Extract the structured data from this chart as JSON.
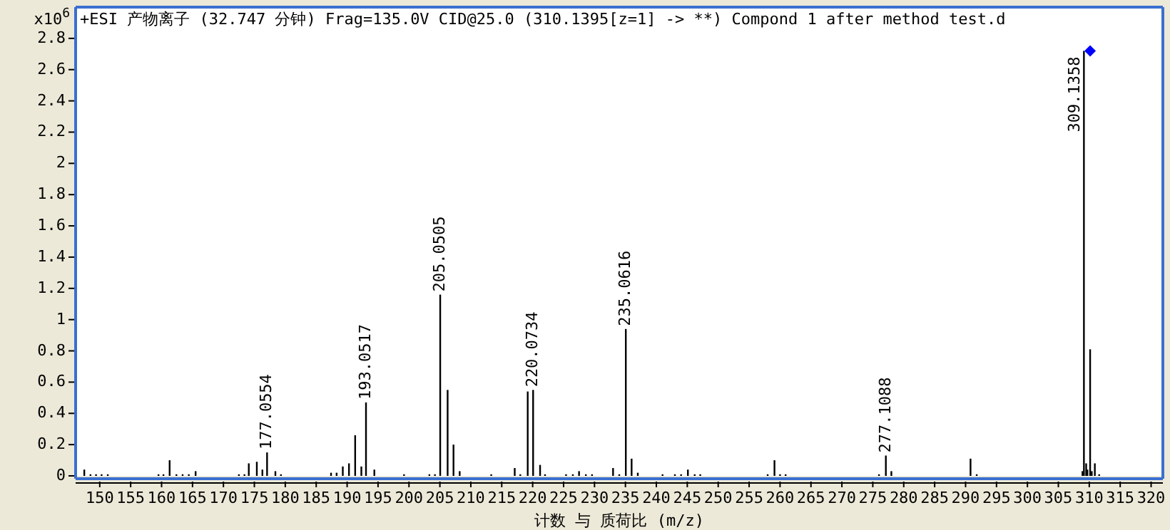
{
  "chart_data": {
    "type": "bar",
    "title": "+ESI 产物离子 (32.747 分钟) Frag=135.0V CID@25.0 (310.1395[z=1] -> **) Compond 1 after method test.d",
    "xlabel": "计数 与 质荷比 (m/z)",
    "ylabel": "x10$^{6}$",
    "xlim": [
      146.1,
      321.9
    ],
    "ylim": [
      0,
      3.0
    ],
    "xticks": [
      150,
      155,
      160,
      165,
      170,
      175,
      180,
      185,
      190,
      195,
      200,
      205,
      210,
      215,
      220,
      225,
      230,
      235,
      240,
      245,
      250,
      255,
      260,
      265,
      270,
      275,
      280,
      285,
      290,
      295,
      300,
      305,
      310,
      315,
      320
    ],
    "yticks": [
      0,
      0.2,
      0.4,
      0.6,
      0.8,
      1,
      1.2,
      1.4,
      1.6,
      1.8,
      2,
      2.2,
      2.4,
      2.6,
      2.8
    ],
    "series": [
      {
        "color": "#000000",
        "x": [
          147.5,
          148.5,
          149.4,
          150.3,
          151.3,
          159.5,
          160.3,
          161.3,
          162.4,
          163.4,
          164.4,
          165.5,
          172.5,
          173.4,
          174.1,
          175.4,
          176.3,
          177.0554,
          178.4,
          179.3,
          187.4,
          188.3,
          189.3,
          190.3,
          191.3,
          192.3,
          193.0517,
          194.4,
          199.2,
          203.3,
          204.2,
          205.0505,
          206.25,
          207.2,
          208.2,
          213.3,
          217.1,
          218.0,
          219.2,
          220.0734,
          221.2,
          222.0,
          225.4,
          226.5,
          227.5,
          228.6,
          229.6,
          233.0,
          234.0,
          235.0616,
          236.0,
          237.0,
          241.0,
          243.0,
          244.0,
          245.1,
          246.2,
          247.1,
          258.0,
          259.1,
          260.0,
          260.9,
          276.0,
          277.1088,
          278.0,
          290.8,
          291.8,
          308.9,
          309.1358,
          309.5,
          309.7,
          310.1395,
          310.4,
          310.9,
          311.6
        ],
        "values": [
          0.04,
          0.01,
          0.01,
          0.01,
          0.01,
          0.01,
          0.01,
          0.1,
          0.01,
          0.01,
          0.01,
          0.03,
          0.01,
          0.01,
          0.08,
          0.09,
          0.04,
          0.15,
          0.03,
          0.01,
          0.02,
          0.02,
          0.06,
          0.08,
          0.26,
          0.06,
          0.47,
          0.04,
          0.01,
          0.01,
          0.01,
          1.16,
          0.55,
          0.2,
          0.03,
          0.01,
          0.05,
          0.01,
          0.54,
          0.55,
          0.07,
          0.01,
          0.01,
          0.01,
          0.03,
          0.01,
          0.01,
          0.05,
          0.01,
          0.94,
          0.11,
          0.02,
          0.01,
          0.01,
          0.01,
          0.04,
          0.01,
          0.01,
          0.01,
          0.1,
          0.01,
          0.01,
          0.01,
          0.13,
          0.03,
          0.11,
          0.01,
          0.03,
          2.72,
          0.08,
          0.04,
          0.81,
          0.03,
          0.08,
          0.01
        ]
      },
      {
        "type": "scatter",
        "color": "#0000ff",
        "marker": "diamond",
        "x": [
          310.1395
        ],
        "values": [
          2.72
        ]
      }
    ],
    "annotations": [
      {
        "text": "177.0554",
        "x": 177.0554,
        "y": 0.15
      },
      {
        "text": "193.0517",
        "x": 193.0517,
        "y": 0.47
      },
      {
        "text": "205.0505",
        "x": 205.0505,
        "y": 1.16
      },
      {
        "text": "220.0734",
        "x": 220.0734,
        "y": 0.55
      },
      {
        "text": "235.0616",
        "x": 235.0616,
        "y": 0.94
      },
      {
        "text": "277.1088",
        "x": 277.1088,
        "y": 0.13
      },
      {
        "text": "309.1358",
        "x": 309.1358,
        "y": 2.72
      }
    ]
  }
}
